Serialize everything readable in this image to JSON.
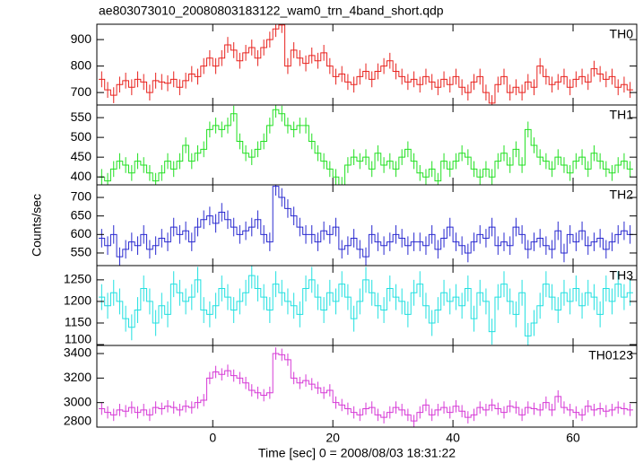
{
  "chart_data": {
    "type": "step",
    "title": "ae803073010_20080803183122_wam0_trn_4band_short.qdp",
    "xlabel": "Time [sec] 0 = 2008/08/03 18:31:22",
    "ylabel": "Counts/sec",
    "xlim": [
      -19.3,
      70.6
    ],
    "xticks": [
      0,
      20,
      40,
      60
    ],
    "x": [
      -18.5,
      -17.5,
      -16.5,
      -15.5,
      -14.5,
      -13.5,
      -12.5,
      -11.5,
      -10.5,
      -9.5,
      -8.5,
      -7.5,
      -6.5,
      -5.5,
      -4.5,
      -3.5,
      -2.5,
      -1.5,
      -0.5,
      0.5,
      1.5,
      2.5,
      3.5,
      4.5,
      5.5,
      6.5,
      7.5,
      8.5,
      9.5,
      10.5,
      11.5,
      12.5,
      13.5,
      14.5,
      15.5,
      16.5,
      17.5,
      18.5,
      19.5,
      20.5,
      21.5,
      22.5,
      23.5,
      24.5,
      25.5,
      26.5,
      27.5,
      28.5,
      29.5,
      30.5,
      31.5,
      32.5,
      33.5,
      34.5,
      35.5,
      36.5,
      37.5,
      38.5,
      39.5,
      40.5,
      41.5,
      42.5,
      43.5,
      44.5,
      45.5,
      46.5,
      47.5,
      48.5,
      49.5,
      50.5,
      51.5,
      52.5,
      53.5,
      54.5,
      55.5,
      56.5,
      57.5,
      58.5,
      59.5,
      60.5,
      61.5,
      62.5,
      63.5,
      64.5,
      65.5,
      66.5,
      67.5,
      68.5,
      69.5
    ],
    "panels": [
      {
        "name": "TH0",
        "color": "#e8231f",
        "ylim": [
          653,
          958
        ],
        "yticks": [
          700,
          800,
          900
        ],
        "error": 30,
        "values": [
          750,
          710,
          690,
          730,
          745,
          720,
          750,
          740,
          700,
          745,
          740,
          735,
          750,
          720,
          745,
          770,
          760,
          800,
          830,
          800,
          830,
          880,
          860,
          820,
          850,
          870,
          830,
          870,
          900,
          940,
          955,
          800,
          860,
          830,
          810,
          840,
          820,
          850,
          800,
          760,
          770,
          740,
          730,
          760,
          780,
          750,
          780,
          800,
          820,
          780,
          760,
          740,
          750,
          730,
          760,
          740,
          720,
          750,
          730,
          760,
          720,
          700,
          740,
          760,
          700,
          660,
          730,
          760,
          700,
          720,
          700,
          740,
          720,
          800,
          760,
          730,
          740,
          760,
          720,
          750,
          760,
          740,
          790,
          770,
          750,
          760,
          720,
          730,
          710
        ]
      },
      {
        "name": "TH1",
        "color": "#22e022",
        "ylim": [
          380,
          582
        ],
        "yticks": [
          400,
          450,
          500,
          550
        ],
        "error": 20,
        "values": [
          400,
          390,
          420,
          440,
          430,
          410,
          440,
          430,
          410,
          390,
          410,
          440,
          420,
          440,
          480,
          440,
          460,
          470,
          520,
          530,
          520,
          530,
          560,
          490,
          460,
          450,
          470,
          490,
          530,
          570,
          560,
          530,
          520,
          530,
          530,
          490,
          460,
          440,
          420,
          400,
          380,
          430,
          450,
          440,
          450,
          420,
          460,
          430,
          440,
          420,
          450,
          470,
          440,
          410,
          400,
          420,
          390,
          440,
          420,
          440,
          460,
          450,
          420,
          400,
          420,
          400,
          440,
          460,
          430,
          470,
          430,
          520,
          480,
          450,
          440,
          420,
          450,
          430,
          410,
          440,
          450,
          420,
          460,
          440,
          420,
          410,
          430,
          440,
          420
        ]
      },
      {
        "name": "TH2",
        "color": "#2a2ad0",
        "ylim": [
          516,
          734
        ],
        "yticks": [
          550,
          600,
          650,
          700
        ],
        "error": 25,
        "values": [
          590,
          570,
          600,
          540,
          560,
          580,
          570,
          600,
          560,
          570,
          590,
          580,
          620,
          600,
          610,
          580,
          620,
          640,
          650,
          630,
          660,
          640,
          620,
          600,
          610,
          620,
          640,
          600,
          580,
          730,
          700,
          670,
          650,
          620,
          600,
          600,
          580,
          610,
          600,
          620,
          560,
          570,
          590,
          560,
          540,
          600,
          580,
          570,
          580,
          600,
          590,
          570,
          580,
          580,
          570,
          600,
          560,
          590,
          620,
          580,
          570,
          550,
          580,
          600,
          590,
          620,
          570,
          580,
          570,
          620,
          600,
          560,
          580,
          590,
          570,
          560,
          610,
          550,
          600,
          580,
          610,
          570,
          580,
          590,
          560,
          580,
          600,
          610,
          600
        ]
      },
      {
        "name": "TH3",
        "color": "#22e0e0",
        "ylim": [
          1098,
          1283
        ],
        "yticks": [
          1100,
          1150,
          1200,
          1250
        ],
        "error": 30,
        "values": [
          1210,
          1190,
          1220,
          1200,
          1160,
          1140,
          1180,
          1230,
          1200,
          1150,
          1190,
          1170,
          1240,
          1220,
          1200,
          1210,
          1250,
          1180,
          1170,
          1190,
          1230,
          1210,
          1180,
          1200,
          1220,
          1260,
          1230,
          1210,
          1180,
          1240,
          1220,
          1200,
          1190,
          1170,
          1230,
          1250,
          1210,
          1180,
          1220,
          1200,
          1240,
          1210,
          1160,
          1200,
          1250,
          1220,
          1190,
          1180,
          1230,
          1210,
          1200,
          1170,
          1220,
          1240,
          1190,
          1150,
          1180,
          1220,
          1200,
          1210,
          1190,
          1230,
          1160,
          1220,
          1200,
          1130,
          1210,
          1240,
          1200,
          1170,
          1220,
          1120,
          1150,
          1190,
          1240,
          1210,
          1180,
          1220,
          1200,
          1230,
          1190,
          1220,
          1210,
          1170,
          1230,
          1200,
          1240,
          1210,
          1220
        ]
      },
      {
        "name": "TH0123",
        "color": "#d63ad6",
        "ylim": [
          2800,
          3466
        ],
        "yticks": [
          2800,
          3000,
          3200,
          3400
        ],
        "error": 50,
        "values": [
          2950,
          2920,
          2900,
          2940,
          2930,
          2960,
          2920,
          2940,
          2900,
          2960,
          2950,
          2970,
          2960,
          2940,
          2970,
          2960,
          3000,
          3020,
          3200,
          3250,
          3230,
          3260,
          3220,
          3200,
          3160,
          3100,
          3080,
          3060,
          3080,
          3400,
          3390,
          3350,
          3200,
          3160,
          3180,
          3150,
          3120,
          3080,
          3100,
          3000,
          2980,
          2950,
          2920,
          2900,
          2950,
          2960,
          2900,
          2880,
          2920,
          2960,
          2940,
          2900,
          2850,
          2920,
          2980,
          2900,
          2940,
          2960,
          2920,
          2970,
          2930,
          2880,
          2900,
          2960,
          2940,
          2980,
          2950,
          2920,
          2970,
          2960,
          2900,
          2960,
          2950,
          2940,
          3000,
          2940,
          3050,
          2960,
          2940,
          2920,
          2900,
          2970,
          2940,
          2950,
          2930,
          2940,
          2960,
          2950,
          2940
        ]
      }
    ]
  }
}
